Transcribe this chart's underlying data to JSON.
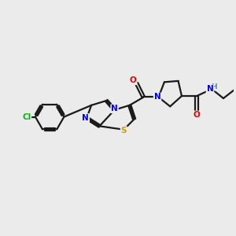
{
  "background_color": "#ebebeb",
  "bond_color": "#1a1a1a",
  "atom_colors": {
    "N": "#0000ee",
    "O": "#ee0000",
    "S": "#c8a000",
    "Cl": "#00bb00",
    "H": "#5588aa",
    "C": "#1a1a1a"
  },
  "figsize": [
    3.0,
    3.0
  ],
  "dpi": 100
}
